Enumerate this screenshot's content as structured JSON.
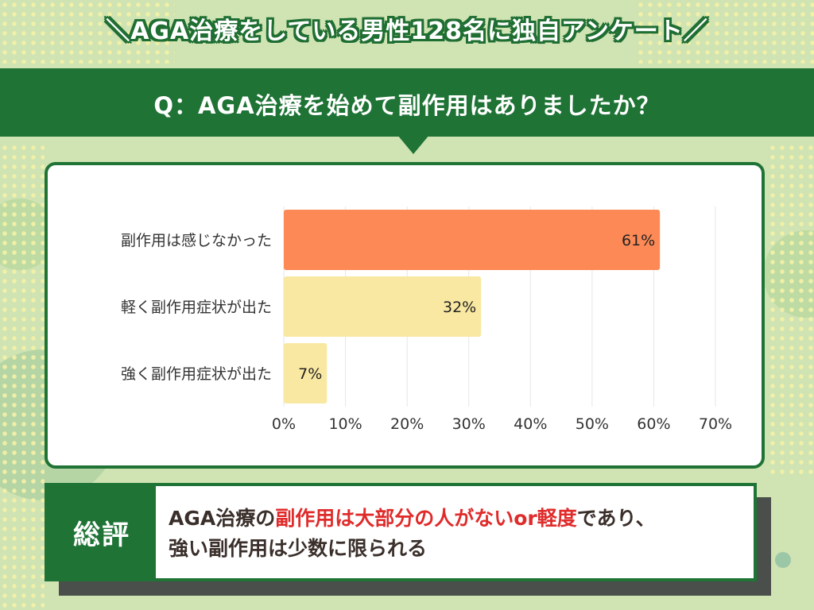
{
  "headline": "＼AGA治療をしている男性128名に独自アンケート／",
  "question": "Q：AGA治療を始めて副作用はありましたか？",
  "chart_data": {
    "type": "bar",
    "orientation": "horizontal",
    "categories": [
      "副作用は感じなかった",
      "軽く副作用症状が出た",
      "強く副作用症状が出た"
    ],
    "values": [
      61,
      32,
      7
    ],
    "value_labels": [
      "61%",
      "32%",
      "7%"
    ],
    "bar_colors": [
      "#fd8a56",
      "#f9e8a2",
      "#f9e8a2"
    ],
    "xlim": [
      0,
      70
    ],
    "x_ticks": [
      "0%",
      "10%",
      "20%",
      "30%",
      "40%",
      "50%",
      "60%",
      "70%"
    ],
    "grid": true,
    "xlabel": "",
    "ylabel": ""
  },
  "summary": {
    "label": "総評",
    "line1_a": "AGA治療の",
    "line1_highlight": "副作用は大部分の人がないor軽度",
    "line1_b": "であり、",
    "line2": "強い副作用は少数に限られる"
  },
  "colors": {
    "brand_green": "#1e7335",
    "background": "#cfe3b3",
    "highlight_red": "#e02b2b"
  }
}
